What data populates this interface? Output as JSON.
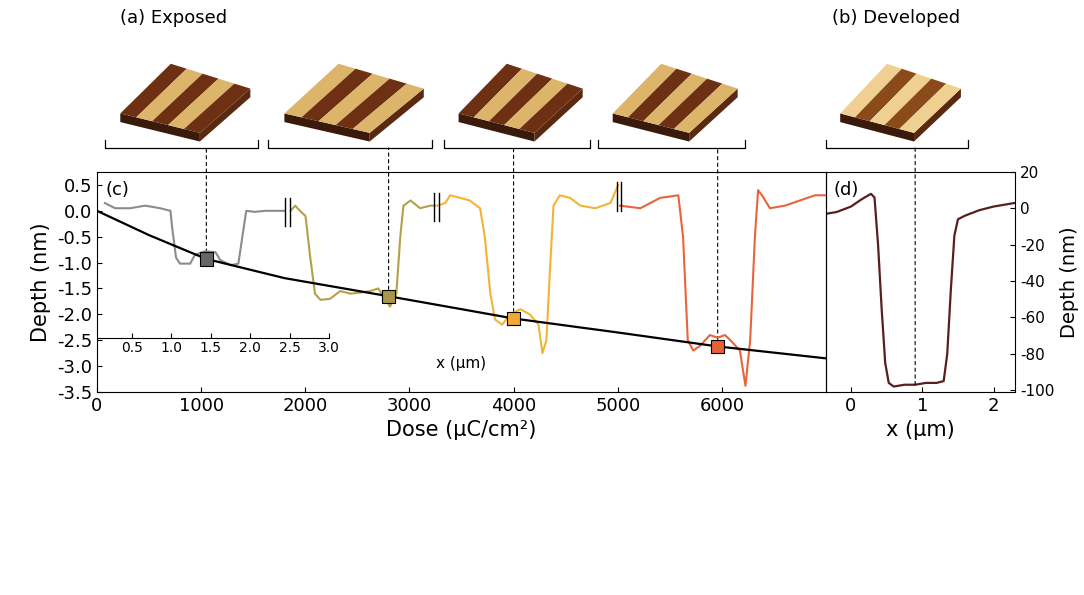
{
  "chart_data": [
    {
      "type": "line",
      "panel_label": "(c)",
      "x_label": "Dose (µC/cm²)",
      "y_label": "Depth (nm)",
      "xlim": [
        0,
        7000
      ],
      "xticks": [
        0,
        1000,
        2000,
        3000,
        4000,
        5000,
        6000
      ],
      "ylim": [
        -3.5,
        0.75
      ],
      "yticks": [
        -3.5,
        -3.0,
        -2.5,
        -2.0,
        -1.5,
        -1.0,
        -0.5,
        0.0,
        0.5
      ],
      "series": [
        {
          "type": "line",
          "color": "#000000",
          "x": [
            0,
            500,
            1050,
            1800,
            2800,
            3500,
            4000,
            5000,
            5960,
            7000
          ],
          "values": [
            0.0,
            -0.47,
            -0.93,
            -1.3,
            -1.65,
            -1.9,
            -2.08,
            -2.35,
            -2.62,
            -2.85
          ]
        },
        {
          "type": "scatter",
          "marker": "square",
          "colors": [
            "#666666",
            "#a8964a",
            "#f0a838",
            "#e8603a"
          ],
          "x": [
            1050,
            2800,
            4000,
            5960
          ],
          "values": [
            -0.93,
            -1.65,
            -2.08,
            -2.62
          ]
        }
      ],
      "inset_axis": {
        "x_label": "x (µm)",
        "xlim": [
          0.06,
          9.29
        ],
        "xticks": [
          0.5,
          1.0,
          1.5,
          2.0,
          2.5,
          3.0
        ]
      },
      "profiles": [
        {
          "color": "#8c8c8c",
          "x": [
            0.16,
            0.29,
            0.48,
            0.67,
            0.86,
            0.99,
            1.01,
            1.06,
            1.11,
            1.24,
            1.3,
            1.43,
            1.56,
            1.62,
            1.75,
            1.85,
            1.91,
            1.95,
            2.06,
            2.19,
            2.44
          ],
          "values": [
            0.15,
            0.05,
            0.05,
            0.1,
            0.05,
            0.0,
            -0.3,
            -0.9,
            -1.02,
            -1.02,
            -0.85,
            -0.78,
            -0.8,
            -0.95,
            -1.05,
            -1.02,
            -0.4,
            0.0,
            -0.02,
            0.0,
            0.0
          ]
        },
        {
          "color": "#b5a04a",
          "x": [
            2.51,
            2.57,
            2.63,
            2.7,
            2.76,
            2.82,
            2.89,
            3.01,
            3.14,
            3.27,
            3.39,
            3.52,
            3.62,
            3.71,
            3.77,
            3.85,
            3.9,
            3.94,
            4.03,
            4.15,
            4.28,
            4.34
          ],
          "values": [
            0.0,
            0.1,
            0.0,
            -0.1,
            -0.9,
            -1.6,
            -1.72,
            -1.7,
            -1.55,
            -1.6,
            -1.58,
            -1.55,
            -1.5,
            -1.7,
            -1.85,
            -1.6,
            -0.5,
            0.1,
            0.2,
            0.05,
            0.1,
            0.1
          ]
        },
        {
          "color": "#f5b335",
          "x": [
            4.37,
            4.47,
            4.53,
            4.66,
            4.78,
            4.91,
            4.97,
            5.04,
            5.1,
            5.19,
            5.29,
            5.42,
            5.54,
            5.65,
            5.7,
            5.75,
            5.8,
            5.84,
            5.92,
            6.05,
            6.18,
            6.37,
            6.56,
            6.66
          ],
          "values": [
            0.1,
            0.15,
            0.3,
            0.25,
            0.2,
            0.05,
            -0.5,
            -1.6,
            -2.1,
            -2.2,
            -2.0,
            -1.9,
            -2.0,
            -2.2,
            -2.75,
            -2.5,
            -1.0,
            0.1,
            0.3,
            0.25,
            0.1,
            0.05,
            0.15,
            0.5
          ]
        },
        {
          "color": "#e8643c",
          "x": [
            6.68,
            6.94,
            7.19,
            7.42,
            7.48,
            7.54,
            7.61,
            7.7,
            7.82,
            7.92,
            8.01,
            8.08,
            8.14,
            8.2,
            8.27,
            8.33,
            8.39,
            8.43,
            8.48,
            8.58,
            8.77,
            8.96,
            9.15,
            9.29
          ],
          "values": [
            0.1,
            0.05,
            0.25,
            0.3,
            -0.5,
            -2.5,
            -2.7,
            -2.6,
            -2.4,
            -2.45,
            -2.4,
            -2.5,
            -2.6,
            -2.7,
            -3.38,
            -2.5,
            -0.5,
            0.4,
            0.3,
            0.05,
            0.1,
            0.2,
            0.3,
            0.3
          ]
        }
      ]
    },
    {
      "type": "line",
      "panel_label": "(d)",
      "x_label": "x (µm)",
      "y_label": "Depth (nm)",
      "xlim": [
        -0.35,
        2.3
      ],
      "xticks": [
        0,
        1,
        2
      ],
      "ylim": [
        -101,
        20
      ],
      "yticks": [
        -100,
        -80,
        -60,
        -40,
        -20,
        0,
        20
      ],
      "color": "#5a1e1e",
      "x": [
        -0.35,
        -0.2,
        0.0,
        0.15,
        0.28,
        0.33,
        0.38,
        0.43,
        0.48,
        0.53,
        0.6,
        0.75,
        0.9,
        1.05,
        1.2,
        1.3,
        1.35,
        1.4,
        1.45,
        1.5,
        1.6,
        1.8,
        2.0,
        2.3
      ],
      "values": [
        -3,
        -2,
        1,
        5,
        8,
        6,
        -20,
        -55,
        -85,
        -96,
        -98,
        -97,
        -97,
        -96,
        -96,
        -95,
        -80,
        -45,
        -15,
        -6,
        -4,
        -1,
        1,
        3
      ],
      "dashed_x": 0.9
    }
  ],
  "image_panels": [
    {
      "label": "(a) Exposed"
    },
    {
      "label": "(b) Developed"
    }
  ]
}
